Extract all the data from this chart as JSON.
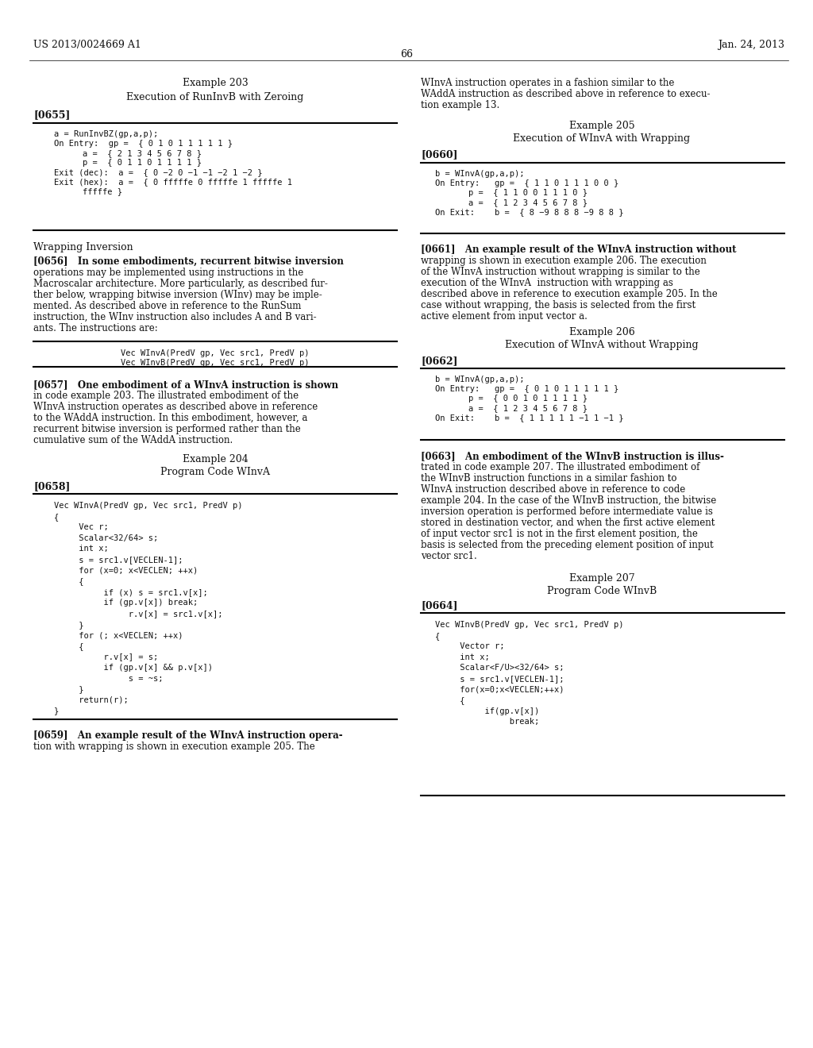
{
  "bg_color": "#ffffff",
  "header_left": "US 2013/0024669 A1",
  "header_right": "Jan. 24, 2013",
  "page_number": "66"
}
